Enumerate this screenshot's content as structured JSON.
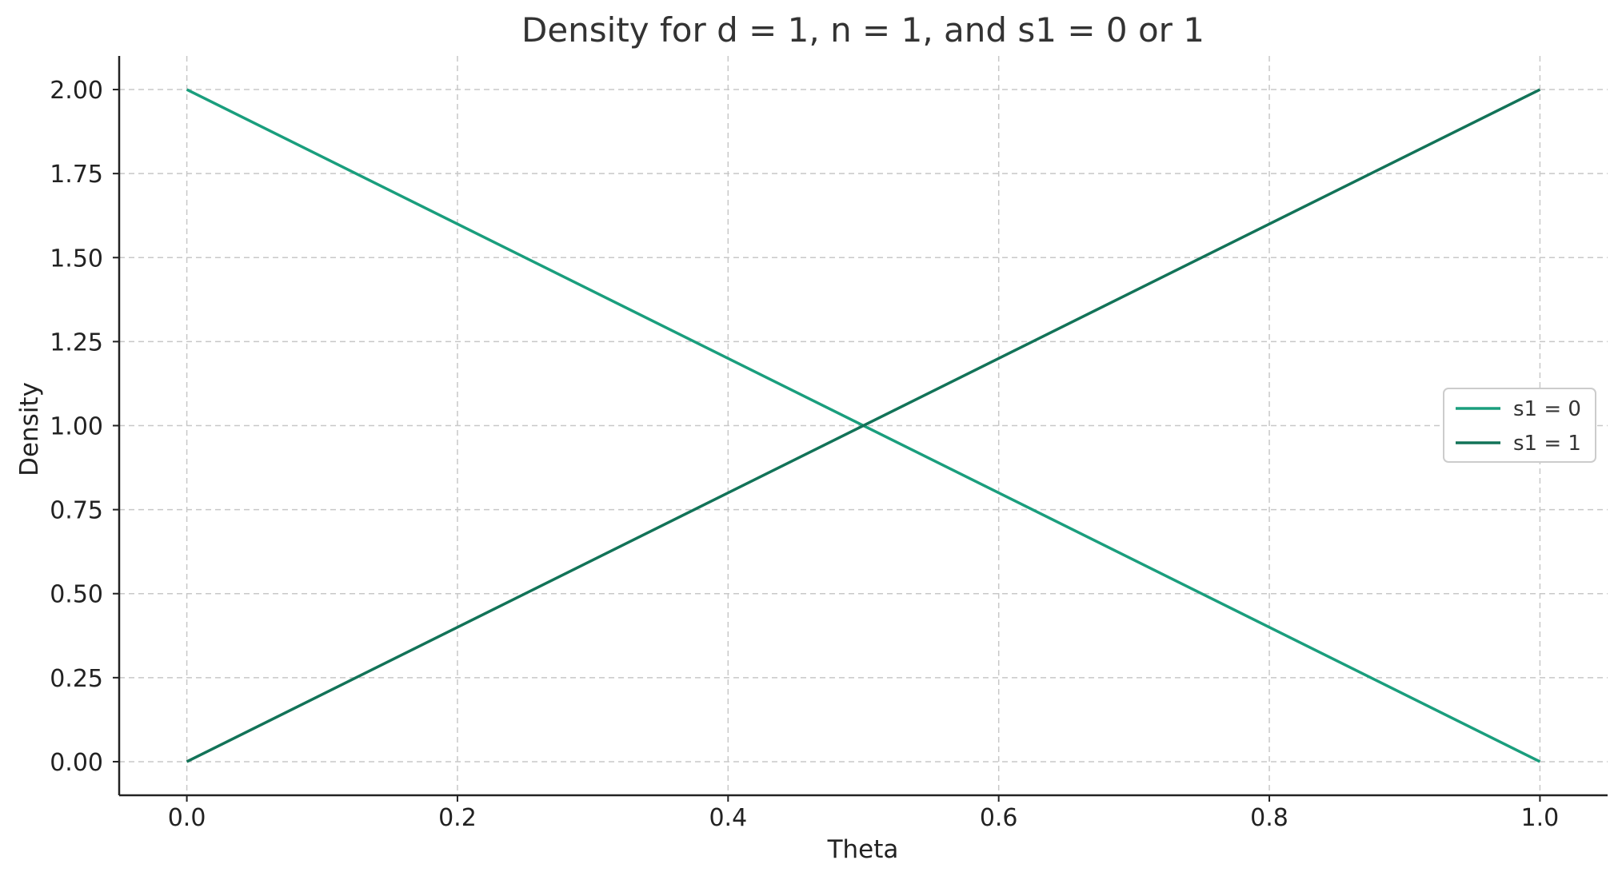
{
  "chart_data": {
    "type": "line",
    "title": "Density for d = 1, n = 1, and s1 = 0 or 1",
    "xlabel": "Theta",
    "ylabel": "Density",
    "xlim": [
      -0.05,
      1.05
    ],
    "ylim": [
      -0.1,
      2.1
    ],
    "xticks": [
      0.0,
      0.2,
      0.4,
      0.6,
      0.8,
      1.0
    ],
    "xtick_labels": [
      "0.0",
      "0.2",
      "0.4",
      "0.6",
      "0.8",
      "1.0"
    ],
    "yticks": [
      0.0,
      0.25,
      0.5,
      0.75,
      1.0,
      1.25,
      1.5,
      1.75,
      2.0
    ],
    "ytick_labels": [
      "0.00",
      "0.25",
      "0.50",
      "0.75",
      "1.00",
      "1.25",
      "1.50",
      "1.75",
      "2.00"
    ],
    "grid": true,
    "legend_position": "center-right",
    "series": [
      {
        "name": "s1 = 0",
        "color": "#1a9e7d",
        "x": [
          0.0,
          1.0
        ],
        "y": [
          2.0,
          0.0
        ]
      },
      {
        "name": "s1 = 1",
        "color": "#127358",
        "x": [
          0.0,
          1.0
        ],
        "y": [
          0.0,
          2.0
        ]
      }
    ]
  }
}
